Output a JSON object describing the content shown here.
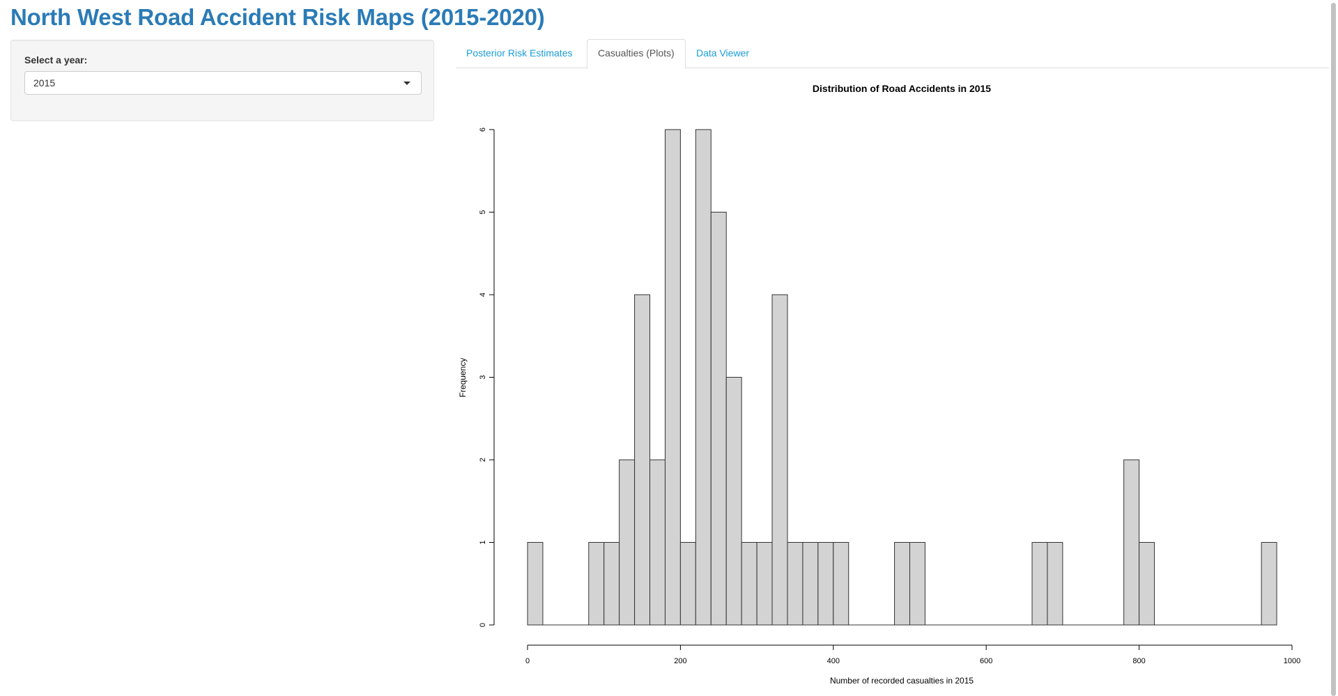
{
  "app": {
    "title": "North West Road Accident Risk Maps (2015-2020)"
  },
  "sidebar": {
    "year_label": "Select a year:",
    "year_selected": "2015"
  },
  "tabs": [
    {
      "label": "Posterior Risk Estimates",
      "active": false
    },
    {
      "label": "Casualties (Plots)",
      "active": true
    },
    {
      "label": "Data Viewer",
      "active": false
    }
  ],
  "colors": {
    "title": "#2a7bb6",
    "tab_link": "#1a9dd9",
    "bar_fill": "#d3d3d3",
    "bar_stroke": "#333333"
  },
  "chart_data": {
    "type": "bar",
    "title": "Distribution of Road Accidents in 2015",
    "xlabel": "Number of recorded casualties in 2015",
    "ylabel": "Frequency",
    "bin_width": 20,
    "x_start": 0,
    "values": [
      1,
      0,
      0,
      0,
      1,
      1,
      2,
      4,
      2,
      6,
      1,
      6,
      5,
      3,
      1,
      1,
      4,
      1,
      1,
      1,
      1,
      0,
      0,
      0,
      1,
      1,
      0,
      0,
      0,
      0,
      0,
      0,
      0,
      1,
      1,
      0,
      0,
      0,
      0,
      2,
      1,
      0,
      0,
      0,
      0,
      0,
      0,
      0,
      1
    ],
    "xlim": [
      0,
      1000
    ],
    "ylim": [
      0,
      6
    ],
    "xticks": [
      "0",
      "200",
      "400",
      "600",
      "800",
      "1000"
    ],
    "yticks": [
      "0",
      "1",
      "2",
      "3",
      "4",
      "5",
      "6"
    ],
    "grid": false,
    "legend": "none"
  }
}
